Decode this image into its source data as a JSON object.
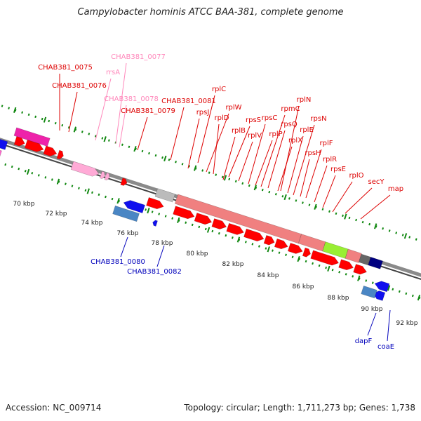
{
  "title": "Campylobacter hominis ATCC BAA-381, complete genome",
  "accession_text": "Accession: NC_009714",
  "genome_info_text": "Topology: circular; Length: 1,711,273 bp; Genes: 1,738",
  "scale_labels": [
    "70 kbp",
    "72 kbp",
    "74 kbp",
    "76 kbp",
    "78 kbp",
    "80 kbp",
    "82 kbp",
    "84 kbp",
    "86 kbp",
    "88 kbp",
    "90 kbp",
    "92 kbp"
  ],
  "colors": {
    "red_gene": "#ff0000",
    "dark_red_gene": "#cc0000",
    "blue_gene": "#1010ee",
    "steel_gene": "#4a86c4",
    "pink_gene": "#ff66cc",
    "magenta_gene": "#ee22aa",
    "rrna_pink": "#ffaad6",
    "ribo_block": "#f08080",
    "green_block": "#99ee33",
    "gray_block": "#bbbbbb",
    "navy_block": "#000080",
    "backbone": "#8a8a8a",
    "tick_green": "#118811",
    "label_red": "#dd0000",
    "label_pink": "#ff88bb",
    "label_blue": "#0000bb"
  },
  "labels_top": [
    {
      "text": "CHAB381_0075",
      "color": "label_red"
    },
    {
      "text": "rrsA",
      "color": "label_pink"
    },
    {
      "text": "CHAB381_0077",
      "color": "label_pink"
    },
    {
      "text": "CHAB381_0076",
      "color": "label_red"
    },
    {
      "text": "CHAB381_0078",
      "color": "label_pink"
    },
    {
      "text": "CHAB381_0079",
      "color": "label_red"
    },
    {
      "text": "CHAB381_0081",
      "color": "label_red"
    },
    {
      "text": "rplC",
      "color": "label_red"
    },
    {
      "text": "rpsJ",
      "color": "label_red"
    },
    {
      "text": "rplW",
      "color": "label_red"
    },
    {
      "text": "rplD",
      "color": "label_red"
    },
    {
      "text": "rpsS",
      "color": "label_red"
    },
    {
      "text": "rplB",
      "color": "label_red"
    },
    {
      "text": "rplV",
      "color": "label_red"
    },
    {
      "text": "rpsC",
      "color": "label_red"
    },
    {
      "text": "rplP",
      "color": "label_red"
    },
    {
      "text": "rpmC",
      "color": "label_red"
    },
    {
      "text": "rpsQ",
      "color": "label_red"
    },
    {
      "text": "rplX",
      "color": "label_red"
    },
    {
      "text": "rplN",
      "color": "label_red"
    },
    {
      "text": "rplE",
      "color": "label_red"
    },
    {
      "text": "rpsN",
      "color": "label_red"
    },
    {
      "text": "rpsH",
      "color": "label_red"
    },
    {
      "text": "rplF",
      "color": "label_red"
    },
    {
      "text": "rplR",
      "color": "label_red"
    },
    {
      "text": "rpsE",
      "color": "label_red"
    },
    {
      "text": "rplO",
      "color": "label_red"
    },
    {
      "text": "secY",
      "color": "label_red"
    },
    {
      "text": "map",
      "color": "label_red"
    }
  ],
  "labels_bottom": [
    {
      "text": "CHAB381_0080",
      "color": "label_blue"
    },
    {
      "text": "CHAB381_0082",
      "color": "label_blue"
    },
    {
      "text": "dapF",
      "color": "label_blue"
    },
    {
      "text": "coaE",
      "color": "label_blue"
    }
  ]
}
